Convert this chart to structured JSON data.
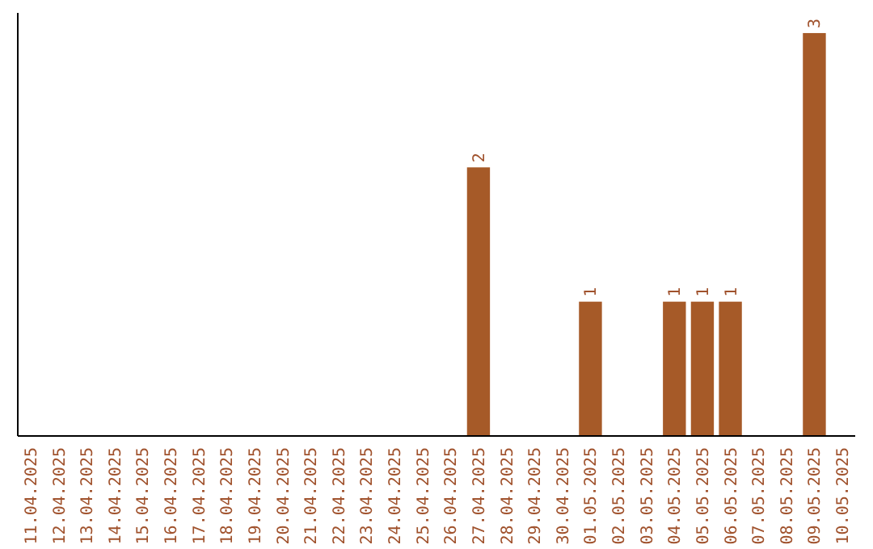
{
  "chart_data": {
    "type": "bar",
    "categories": [
      "11.04.2025",
      "12.04.2025",
      "13.04.2025",
      "14.04.2025",
      "15.04.2025",
      "16.04.2025",
      "17.04.2025",
      "18.04.2025",
      "19.04.2025",
      "20.04.2025",
      "21.04.2025",
      "22.04.2025",
      "23.04.2025",
      "24.04.2025",
      "25.04.2025",
      "26.04.2025",
      "27.04.2025",
      "28.04.2025",
      "29.04.2025",
      "30.04.2025",
      "01.05.2025",
      "02.05.2025",
      "03.05.2025",
      "04.05.2025",
      "05.05.2025",
      "06.05.2025",
      "07.05.2025",
      "08.05.2025",
      "09.05.2025",
      "10.05.2025"
    ],
    "values": [
      null,
      null,
      null,
      null,
      null,
      null,
      null,
      null,
      null,
      null,
      null,
      null,
      null,
      null,
      null,
      null,
      2,
      null,
      null,
      null,
      1,
      null,
      null,
      1,
      1,
      1,
      null,
      null,
      3,
      null
    ],
    "color": "#a65a28",
    "data_labels": true,
    "tick_labels": "x"
  }
}
